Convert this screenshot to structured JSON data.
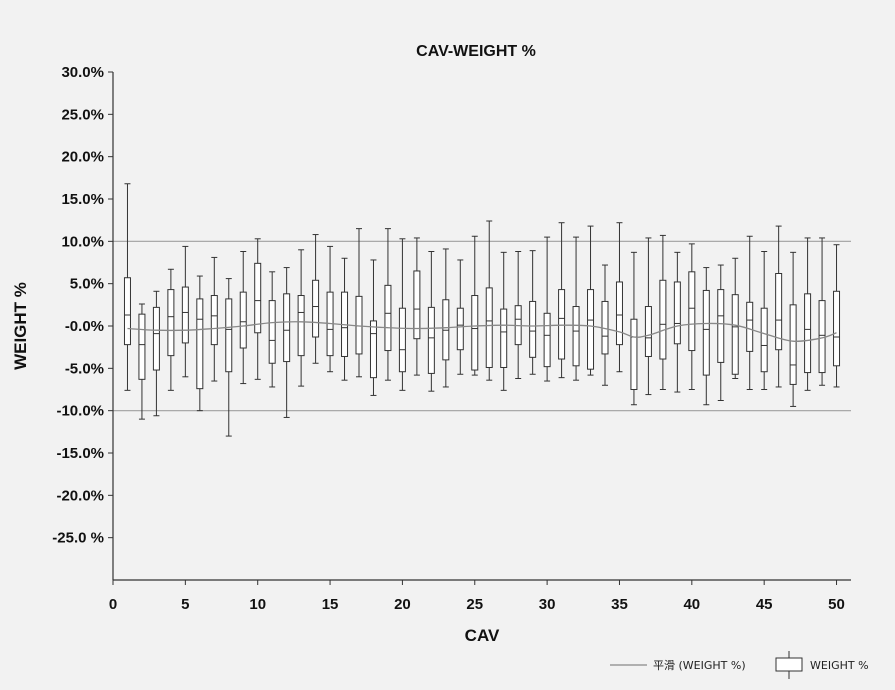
{
  "chart_data": {
    "type": "boxplot",
    "title": "CAV-WEIGHT %",
    "xlabel": "CAV",
    "ylabel": "WEIGHT %",
    "xlim": [
      0,
      51
    ],
    "ylim": [
      -30,
      30
    ],
    "x_ticks": [
      "0",
      "5",
      "10",
      "15",
      "20",
      "25",
      "30",
      "35",
      "40",
      "45",
      "50"
    ],
    "y_ticks": [
      {
        "value": 30,
        "label": "30.0%"
      },
      {
        "value": 25,
        "label": "25.0%"
      },
      {
        "value": 20,
        "label": "20.0%"
      },
      {
        "value": 15,
        "label": "15.0%"
      },
      {
        "value": 10,
        "label": "10.0%"
      },
      {
        "value": 5,
        "label": "5.0%"
      },
      {
        "value": 0,
        "label": "-0.0%"
      },
      {
        "value": -5,
        "label": "-5.0%"
      },
      {
        "value": -10,
        "label": "-10.0%"
      },
      {
        "value": -15,
        "label": "-15.0%"
      },
      {
        "value": -20,
        "label": "-20.0%"
      },
      {
        "value": -25,
        "label": "-25.0 %"
      }
    ],
    "reference_lines": [
      10,
      -10
    ],
    "grid": false,
    "legend_position": "bottom-right",
    "series": [
      {
        "name": "WEIGHT %",
        "kind": "box",
        "boxes": [
          {
            "x": 1,
            "whisker_high": 16.8,
            "q3": 5.7,
            "median": 1.3,
            "q1": -2.2,
            "whisker_low": -7.6
          },
          {
            "x": 2,
            "whisker_high": 2.6,
            "q3": 1.4,
            "median": -2.2,
            "q1": -6.3,
            "whisker_low": -11.0
          },
          {
            "x": 3,
            "whisker_high": 4.1,
            "q3": 2.2,
            "median": -0.9,
            "q1": -5.2,
            "whisker_low": -10.6
          },
          {
            "x": 4,
            "whisker_high": 6.7,
            "q3": 4.3,
            "median": 1.1,
            "q1": -3.5,
            "whisker_low": -7.6
          },
          {
            "x": 5,
            "whisker_high": 9.4,
            "q3": 4.6,
            "median": 1.6,
            "q1": -2.0,
            "whisker_low": -6.0
          },
          {
            "x": 6,
            "whisker_high": 5.9,
            "q3": 3.2,
            "median": 0.8,
            "q1": -7.4,
            "whisker_low": -10.0
          },
          {
            "x": 7,
            "whisker_high": 8.1,
            "q3": 3.6,
            "median": 1.2,
            "q1": -2.2,
            "whisker_low": -6.5
          },
          {
            "x": 8,
            "whisker_high": 5.6,
            "q3": 3.2,
            "median": -0.4,
            "q1": -5.4,
            "whisker_low": -13.0
          },
          {
            "x": 9,
            "whisker_high": 8.8,
            "q3": 4.0,
            "median": 0.5,
            "q1": -2.6,
            "whisker_low": -6.8
          },
          {
            "x": 10,
            "whisker_high": 10.3,
            "q3": 7.4,
            "median": 3.0,
            "q1": -0.8,
            "whisker_low": -6.3
          },
          {
            "x": 11,
            "whisker_high": 6.4,
            "q3": 3.0,
            "median": -1.7,
            "q1": -4.4,
            "whisker_low": -7.2
          },
          {
            "x": 12,
            "whisker_high": 6.9,
            "q3": 3.8,
            "median": -0.5,
            "q1": -4.2,
            "whisker_low": -10.8
          },
          {
            "x": 13,
            "whisker_high": 9.0,
            "q3": 3.6,
            "median": 1.6,
            "q1": -3.5,
            "whisker_low": -7.1
          },
          {
            "x": 14,
            "whisker_high": 10.8,
            "q3": 5.4,
            "median": 2.3,
            "q1": -1.3,
            "whisker_low": -4.4
          },
          {
            "x": 15,
            "whisker_high": 9.4,
            "q3": 4.0,
            "median": -0.4,
            "q1": -3.5,
            "whisker_low": -5.4
          },
          {
            "x": 16,
            "whisker_high": 8.0,
            "q3": 4.0,
            "median": -0.2,
            "q1": -3.6,
            "whisker_low": -6.4
          },
          {
            "x": 17,
            "whisker_high": 11.5,
            "q3": 3.5,
            "median": 0.0,
            "q1": -3.3,
            "whisker_low": -6.0
          },
          {
            "x": 18,
            "whisker_high": 7.8,
            "q3": 0.6,
            "median": -0.9,
            "q1": -6.1,
            "whisker_low": -8.2
          },
          {
            "x": 19,
            "whisker_high": 11.5,
            "q3": 4.8,
            "median": 1.5,
            "q1": -2.9,
            "whisker_low": -6.4
          },
          {
            "x": 20,
            "whisker_high": 10.3,
            "q3": 2.1,
            "median": -2.8,
            "q1": -5.4,
            "whisker_low": -7.6
          },
          {
            "x": 21,
            "whisker_high": 10.4,
            "q3": 6.5,
            "median": 2.0,
            "q1": -1.5,
            "whisker_low": -5.8
          },
          {
            "x": 22,
            "whisker_high": 8.8,
            "q3": 2.2,
            "median": -1.4,
            "q1": -5.6,
            "whisker_low": -7.7
          },
          {
            "x": 23,
            "whisker_high": 9.1,
            "q3": 3.1,
            "median": -0.5,
            "q1": -4.0,
            "whisker_low": -7.2
          },
          {
            "x": 24,
            "whisker_high": 7.8,
            "q3": 2.1,
            "median": 0.1,
            "q1": -2.8,
            "whisker_low": -5.7
          },
          {
            "x": 25,
            "whisker_high": 10.6,
            "q3": 3.6,
            "median": -0.3,
            "q1": -5.2,
            "whisker_low": -5.8
          },
          {
            "x": 26,
            "whisker_high": 12.4,
            "q3": 4.5,
            "median": 0.6,
            "q1": -4.9,
            "whisker_low": -6.4
          },
          {
            "x": 27,
            "whisker_high": 8.7,
            "q3": 2.0,
            "median": -0.7,
            "q1": -4.9,
            "whisker_low": -7.6
          },
          {
            "x": 28,
            "whisker_high": 8.8,
            "q3": 2.4,
            "median": 0.8,
            "q1": -2.2,
            "whisker_low": -6.2
          },
          {
            "x": 29,
            "whisker_high": 8.9,
            "q3": 2.9,
            "median": -0.6,
            "q1": -3.7,
            "whisker_low": -5.7
          },
          {
            "x": 30,
            "whisker_high": 10.5,
            "q3": 1.5,
            "median": -1.1,
            "q1": -4.8,
            "whisker_low": -6.5
          },
          {
            "x": 31,
            "whisker_high": 12.2,
            "q3": 4.3,
            "median": 0.9,
            "q1": -3.9,
            "whisker_low": -6.1
          },
          {
            "x": 32,
            "whisker_high": 10.5,
            "q3": 2.3,
            "median": -0.6,
            "q1": -4.7,
            "whisker_low": -6.4
          },
          {
            "x": 33,
            "whisker_high": 11.8,
            "q3": 4.3,
            "median": 0.7,
            "q1": -5.1,
            "whisker_low": -5.8
          },
          {
            "x": 34,
            "whisker_high": 7.2,
            "q3": 2.9,
            "median": -1.2,
            "q1": -3.3,
            "whisker_low": -7.0
          },
          {
            "x": 35,
            "whisker_high": 12.2,
            "q3": 5.2,
            "median": 1.3,
            "q1": -2.2,
            "whisker_low": -5.4
          },
          {
            "x": 36,
            "whisker_high": 8.7,
            "q3": 0.8,
            "median": -1.3,
            "q1": -7.5,
            "whisker_low": -9.3
          },
          {
            "x": 37,
            "whisker_high": 10.4,
            "q3": 2.3,
            "median": -1.4,
            "q1": -3.6,
            "whisker_low": -8.1
          },
          {
            "x": 38,
            "whisker_high": 10.7,
            "q3": 5.4,
            "median": 0.2,
            "q1": -3.9,
            "whisker_low": -7.5
          },
          {
            "x": 39,
            "whisker_high": 8.7,
            "q3": 5.2,
            "median": 0.3,
            "q1": -2.1,
            "whisker_low": -7.8
          },
          {
            "x": 40,
            "whisker_high": 9.7,
            "q3": 6.4,
            "median": 2.1,
            "q1": -2.9,
            "whisker_low": -7.5
          },
          {
            "x": 41,
            "whisker_high": 6.9,
            "q3": 4.2,
            "median": -0.4,
            "q1": -5.8,
            "whisker_low": -9.3
          },
          {
            "x": 42,
            "whisker_high": 7.2,
            "q3": 4.3,
            "median": 1.2,
            "q1": -4.3,
            "whisker_low": -8.8
          },
          {
            "x": 43,
            "whisker_high": 8.0,
            "q3": 3.7,
            "median": -0.1,
            "q1": -5.7,
            "whisker_low": -6.2
          },
          {
            "x": 44,
            "whisker_high": 10.6,
            "q3": 2.8,
            "median": 0.7,
            "q1": -3.0,
            "whisker_low": -7.5
          },
          {
            "x": 45,
            "whisker_high": 8.8,
            "q3": 2.1,
            "median": -2.3,
            "q1": -5.4,
            "whisker_low": -7.5
          },
          {
            "x": 46,
            "whisker_high": 11.8,
            "q3": 6.2,
            "median": 0.7,
            "q1": -2.8,
            "whisker_low": -7.2
          },
          {
            "x": 47,
            "whisker_high": 8.7,
            "q3": 2.5,
            "median": -4.6,
            "q1": -6.9,
            "whisker_low": -9.5
          },
          {
            "x": 48,
            "whisker_high": 10.4,
            "q3": 3.8,
            "median": -0.4,
            "q1": -5.5,
            "whisker_low": -7.6
          },
          {
            "x": 49,
            "whisker_high": 10.4,
            "q3": 3.0,
            "median": -1.1,
            "q1": -5.5,
            "whisker_low": -7.0
          },
          {
            "x": 50,
            "whisker_high": 9.6,
            "q3": 4.1,
            "median": -1.3,
            "q1": -4.7,
            "whisker_low": -7.2
          }
        ]
      },
      {
        "name": "平滑 (WEIGHT %)",
        "kind": "smooth_line",
        "x": [
          1,
          3,
          5,
          7,
          9,
          11,
          13,
          15,
          17,
          19,
          21,
          23,
          25,
          27,
          29,
          31,
          33,
          35,
          36,
          37,
          39,
          41,
          43,
          45,
          47,
          49,
          50
        ],
        "y": [
          -0.3,
          -0.5,
          -0.5,
          -0.3,
          0.0,
          0.4,
          0.5,
          0.3,
          0.0,
          -0.2,
          -0.3,
          -0.2,
          0.0,
          0.1,
          0.0,
          0.1,
          0.0,
          -0.7,
          -1.3,
          -1.1,
          0.0,
          0.3,
          0.1,
          -0.9,
          -1.8,
          -1.4,
          -0.8
        ]
      }
    ]
  },
  "colors": {
    "background": "#f2f2f2",
    "axis": "#333333",
    "box": "#333333",
    "reference_line": "#a0a0a0",
    "smooth_line": "#888888"
  }
}
